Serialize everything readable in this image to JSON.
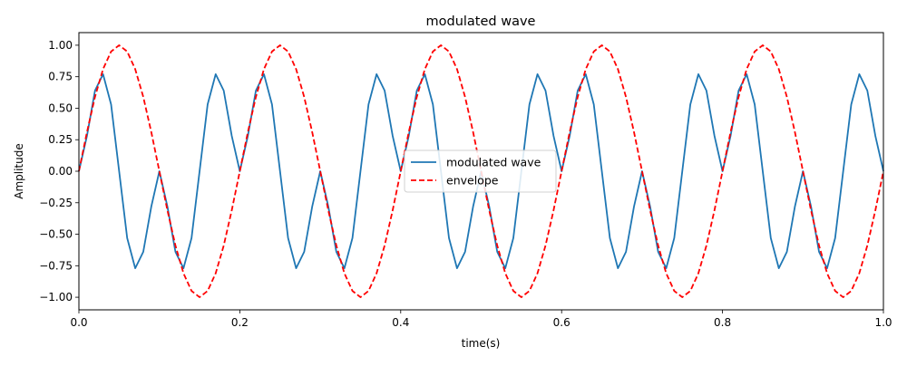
{
  "chart_data": {
    "type": "line",
    "title": "modulated wave",
    "xlabel": "time(s)",
    "ylabel": "Amplitude",
    "xlim": [
      0.0,
      1.0
    ],
    "ylim": [
      -1.1,
      1.1
    ],
    "grid": false,
    "legend_position": "center",
    "x_ticks": [
      {
        "value": 0.0,
        "label": "0.0"
      },
      {
        "value": 0.2,
        "label": "0.2"
      },
      {
        "value": 0.4,
        "label": "0.4"
      },
      {
        "value": 0.6,
        "label": "0.6"
      },
      {
        "value": 0.8,
        "label": "0.8"
      },
      {
        "value": 1.0,
        "label": "1.0"
      }
    ],
    "y_ticks": [
      {
        "value": 1.0,
        "label": "1.00"
      },
      {
        "value": 0.75,
        "label": "0.75"
      },
      {
        "value": 0.5,
        "label": "0.50"
      },
      {
        "value": 0.25,
        "label": "0.25"
      },
      {
        "value": 0.0,
        "label": "0.00"
      },
      {
        "value": -0.25,
        "label": "−0.25"
      },
      {
        "value": -0.5,
        "label": "−0.50"
      },
      {
        "value": -0.75,
        "label": "−0.75"
      },
      {
        "value": -1.0,
        "label": "−1.00"
      }
    ],
    "series": [
      {
        "name": "modulated wave",
        "color": "#1f77b4",
        "style": "solid",
        "x": [
          0.0,
          0.01,
          0.02,
          0.03,
          0.04,
          0.05,
          0.06,
          0.07,
          0.08,
          0.09,
          0.1,
          0.11,
          0.12,
          0.13,
          0.14,
          0.15,
          0.16,
          0.17,
          0.18,
          0.19,
          0.2,
          0.21,
          0.22,
          0.23,
          0.24,
          0.25,
          0.26,
          0.27,
          0.28,
          0.29,
          0.3,
          0.31,
          0.32,
          0.33,
          0.34,
          0.35,
          0.36,
          0.37,
          0.38,
          0.39,
          0.4,
          0.41,
          0.42,
          0.43,
          0.44,
          0.45,
          0.46,
          0.47,
          0.48,
          0.49,
          0.5,
          0.51,
          0.52,
          0.53,
          0.54,
          0.55,
          0.56,
          0.57,
          0.58,
          0.59,
          0.6,
          0.61,
          0.62,
          0.63,
          0.64,
          0.65,
          0.66,
          0.67,
          0.68,
          0.69,
          0.7,
          0.71,
          0.72,
          0.73,
          0.74,
          0.75,
          0.76,
          0.77,
          0.78,
          0.79,
          0.8,
          0.81,
          0.82,
          0.83,
          0.84,
          0.85,
          0.86,
          0.87,
          0.88,
          0.89,
          0.9,
          0.91,
          0.92,
          0.93,
          0.94,
          0.95,
          0.96,
          0.97,
          0.98,
          0.99,
          1.0
        ],
        "y": [
          0.0,
          0.28,
          0.64,
          0.77,
          0.53,
          0.0,
          -0.53,
          -0.77,
          -0.64,
          -0.28,
          0.0,
          -0.28,
          -0.64,
          -0.77,
          -0.53,
          0.0,
          0.53,
          0.77,
          0.64,
          0.28,
          0.0,
          0.28,
          0.64,
          0.77,
          0.53,
          0.0,
          -0.53,
          -0.77,
          -0.64,
          -0.28,
          0.0,
          -0.28,
          -0.64,
          -0.77,
          -0.53,
          0.0,
          0.53,
          0.77,
          0.64,
          0.28,
          0.0,
          0.28,
          0.64,
          0.77,
          0.53,
          0.0,
          -0.53,
          -0.77,
          -0.64,
          -0.28,
          0.0,
          -0.28,
          -0.64,
          -0.77,
          -0.53,
          0.0,
          0.53,
          0.77,
          0.64,
          0.28,
          0.0,
          0.28,
          0.64,
          0.77,
          0.53,
          0.0,
          -0.53,
          -0.77,
          -0.64,
          -0.28,
          0.0,
          -0.28,
          -0.64,
          -0.77,
          -0.53,
          0.0,
          0.53,
          0.77,
          0.64,
          0.28,
          0.0,
          0.28,
          0.64,
          0.77,
          0.53,
          0.0,
          -0.53,
          -0.77,
          -0.64,
          -0.28,
          0.0,
          -0.28,
          -0.64,
          -0.77,
          -0.53,
          0.0,
          0.53,
          0.77,
          0.64,
          0.28,
          0.0
        ]
      },
      {
        "name": "envelope",
        "color": "#ff0000",
        "style": "dashed",
        "x": [
          0.0,
          0.01,
          0.02,
          0.03,
          0.04,
          0.05,
          0.06,
          0.07,
          0.08,
          0.09,
          0.1,
          0.11,
          0.12,
          0.13,
          0.14,
          0.15,
          0.16,
          0.17,
          0.18,
          0.19,
          0.2,
          0.21,
          0.22,
          0.23,
          0.24,
          0.25,
          0.26,
          0.27,
          0.28,
          0.29,
          0.3,
          0.31,
          0.32,
          0.33,
          0.34,
          0.35,
          0.36,
          0.37,
          0.38,
          0.39,
          0.4,
          0.41,
          0.42,
          0.43,
          0.44,
          0.45,
          0.46,
          0.47,
          0.48,
          0.49,
          0.5,
          0.51,
          0.52,
          0.53,
          0.54,
          0.55,
          0.56,
          0.57,
          0.58,
          0.59,
          0.6,
          0.61,
          0.62,
          0.63,
          0.64,
          0.65,
          0.66,
          0.67,
          0.68,
          0.69,
          0.7,
          0.71,
          0.72,
          0.73,
          0.74,
          0.75,
          0.76,
          0.77,
          0.78,
          0.79,
          0.8,
          0.81,
          0.82,
          0.83,
          0.84,
          0.85,
          0.86,
          0.87,
          0.88,
          0.89,
          0.9,
          0.91,
          0.92,
          0.93,
          0.94,
          0.95,
          0.96,
          0.97,
          0.98,
          0.99,
          1.0
        ],
        "y": [
          0.0,
          0.31,
          0.59,
          0.81,
          0.95,
          1.0,
          0.95,
          0.81,
          0.59,
          0.31,
          0.0,
          -0.31,
          -0.59,
          -0.81,
          -0.95,
          -1.0,
          -0.95,
          -0.81,
          -0.59,
          -0.31,
          0.0,
          0.31,
          0.59,
          0.81,
          0.95,
          1.0,
          0.95,
          0.81,
          0.59,
          0.31,
          0.0,
          -0.31,
          -0.59,
          -0.81,
          -0.95,
          -1.0,
          -0.95,
          -0.81,
          -0.59,
          -0.31,
          0.0,
          0.31,
          0.59,
          0.81,
          0.95,
          1.0,
          0.95,
          0.81,
          0.59,
          0.31,
          0.0,
          -0.31,
          -0.59,
          -0.81,
          -0.95,
          -1.0,
          -0.95,
          -0.81,
          -0.59,
          -0.31,
          0.0,
          0.31,
          0.59,
          0.81,
          0.95,
          1.0,
          0.95,
          0.81,
          0.59,
          0.31,
          0.0,
          -0.31,
          -0.59,
          -0.81,
          -0.95,
          -1.0,
          -0.95,
          -0.81,
          -0.59,
          -0.31,
          0.0,
          0.31,
          0.59,
          0.81,
          0.95,
          1.0,
          0.95,
          0.81,
          0.59,
          0.31,
          0.0,
          -0.31,
          -0.59,
          -0.81,
          -0.95,
          -1.0,
          -0.95,
          -0.81,
          -0.59,
          -0.31,
          0.0
        ]
      }
    ]
  }
}
